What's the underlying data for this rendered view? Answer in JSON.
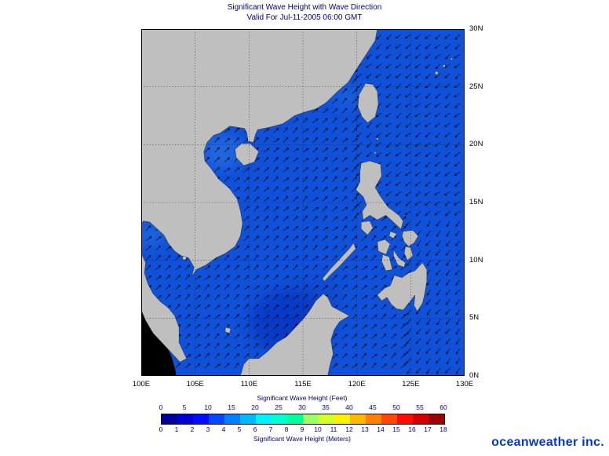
{
  "title": {
    "line1": "Significant Wave Height with Wave Direction",
    "line2": "Valid For Jul-11-2005 06:00 GMT"
  },
  "map": {
    "lon_ticks": [
      {
        "label": "100E",
        "value": 100
      },
      {
        "label": "105E",
        "value": 105
      },
      {
        "label": "110E",
        "value": 110
      },
      {
        "label": "115E",
        "value": 115
      },
      {
        "label": "120E",
        "value": 120
      },
      {
        "label": "125E",
        "value": 125
      },
      {
        "label": "130E",
        "value": 130
      }
    ],
    "lat_ticks": [
      {
        "label": "30N",
        "value": 30
      },
      {
        "label": "25N",
        "value": 25
      },
      {
        "label": "20N",
        "value": 20
      },
      {
        "label": "15N",
        "value": 15
      },
      {
        "label": "10N",
        "value": 10
      },
      {
        "label": "5N",
        "value": 5
      },
      {
        "label": "0N",
        "value": 0
      }
    ],
    "ocean_color": "#0f51d8",
    "land_color": "#bfbfbf",
    "coast_color": "#303030",
    "grid_color": "#111111",
    "arrow_color": "#000000",
    "flow_directions": {
      "south_china_sea": "NE",
      "northeast_pacific": "SW",
      "east_of_mindanao": "WSW"
    }
  },
  "legend": {
    "feet_title": "Significant Wave Height (Feet)",
    "meters_title": "Significant Wave Height (Meters)",
    "feet_ticks": [
      0,
      5,
      10,
      15,
      20,
      25,
      30,
      35,
      40,
      45,
      50,
      55,
      60
    ],
    "meter_ticks": [
      0,
      1,
      2,
      3,
      4,
      5,
      6,
      7,
      8,
      9,
      10,
      11,
      12,
      13,
      14,
      15,
      16,
      17,
      18
    ],
    "colors": [
      "#00009c",
      "#0000d4",
      "#000eff",
      "#0047ff",
      "#0080ff",
      "#00b8ff",
      "#00f1ff",
      "#00ffd4",
      "#00ff9c",
      "#9cff63",
      "#d4ff2b",
      "#fff100",
      "#ffb800",
      "#ff8000",
      "#ff4700",
      "#ff0e00",
      "#d40000",
      "#9c0000"
    ]
  },
  "logo": {
    "text": "oceanweather inc.",
    "color": "#0038cc"
  },
  "chart_data": {
    "type": "heatmap",
    "title": "Significant Wave Height with Wave Direction",
    "valid_time": "Jul-11-2005 06:00 GMT",
    "region": {
      "lon_min": "100E",
      "lon_max": "130E",
      "lat_min": "0N",
      "lat_max": "30N"
    },
    "x_ticks": [
      "100E",
      "105E",
      "110E",
      "115E",
      "120E",
      "125E",
      "130E"
    ],
    "y_ticks": [
      "0N",
      "5N",
      "10N",
      "15N",
      "20N",
      "25N",
      "30N"
    ],
    "colorbar_feet_ticks": [
      0,
      5,
      10,
      15,
      20,
      25,
      30,
      35,
      40,
      45,
      50,
      55,
      60
    ],
    "colorbar_meter_ticks": [
      0,
      1,
      2,
      3,
      4,
      5,
      6,
      7,
      8,
      9,
      10,
      11,
      12,
      13,
      14,
      15,
      16,
      17,
      18
    ],
    "wave_direction": {
      "south_china_sea": "northeast",
      "pacific_northeast_of_taiwan": "southwest",
      "east_of_mindanao": "west-southwest"
    }
  }
}
